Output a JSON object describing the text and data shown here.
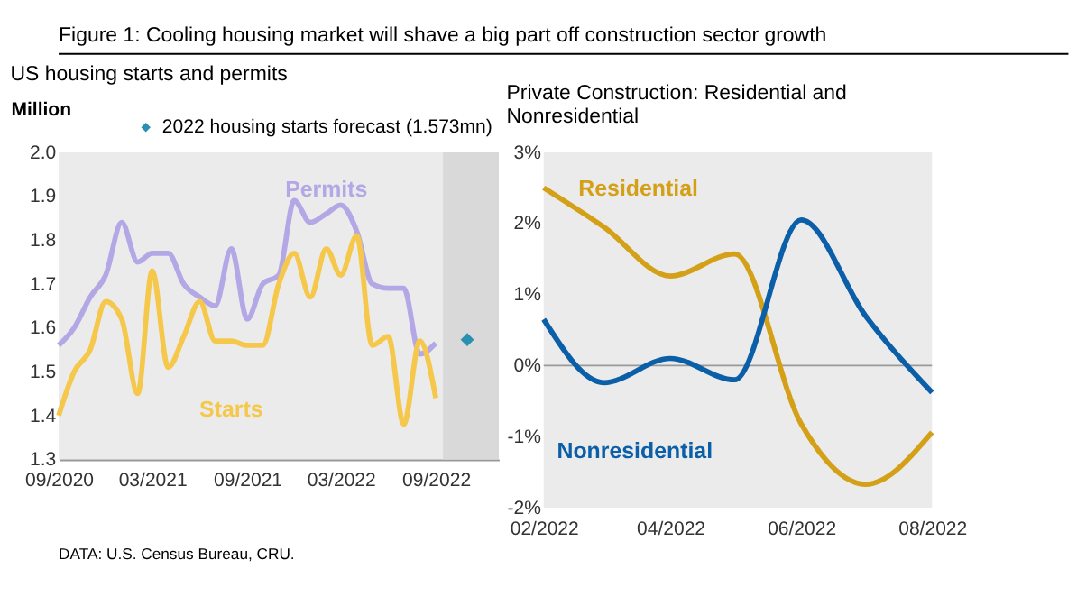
{
  "chart_data": [
    {
      "type": "other",
      "title": "Figure 1:  Cooling housing market will shave a big part off construction sector growth",
      "annotations": [
        "DATA: U.S. Census Bureau, CRU."
      ]
    },
    {
      "type": "line",
      "title": "US housing starts and permits",
      "ylabel": "Million",
      "x": [
        "2020-09",
        "2020-10",
        "2020-11",
        "2020-12",
        "2021-01",
        "2021-02",
        "2021-03",
        "2021-04",
        "2021-05",
        "2021-06",
        "2021-07",
        "2021-08",
        "2021-09",
        "2021-10",
        "2021-11",
        "2021-12",
        "2022-01",
        "2022-02",
        "2022-03",
        "2022-04",
        "2022-05",
        "2022-06",
        "2022-07",
        "2022-08",
        "2022-09"
      ],
      "series": [
        {
          "name": "Permits",
          "color": "#b4a7e5",
          "values": [
            1.56,
            1.6,
            1.67,
            1.72,
            1.84,
            1.75,
            1.77,
            1.77,
            1.7,
            1.67,
            1.65,
            1.78,
            1.62,
            1.7,
            1.72,
            1.89,
            1.84,
            1.86,
            1.88,
            1.82,
            1.7,
            1.69,
            1.69,
            1.54,
            1.565
          ]
        },
        {
          "name": "Starts",
          "color": "#f5c84c",
          "values": [
            1.4,
            1.5,
            1.55,
            1.66,
            1.62,
            1.45,
            1.73,
            1.51,
            1.58,
            1.66,
            1.57,
            1.57,
            1.56,
            1.56,
            1.7,
            1.77,
            1.67,
            1.78,
            1.72,
            1.81,
            1.56,
            1.58,
            1.38,
            1.57,
            1.44
          ]
        },
        {
          "name": "2022 housing starts forecast (1.573mn)",
          "type": "scatter",
          "marker": "diamond",
          "color": "#2b8fb0",
          "x": [
            "2022-11"
          ],
          "values": [
            1.573
          ]
        }
      ],
      "xlim": [
        "2020-09",
        "2023-01"
      ],
      "xticks": [
        {
          "value": "2020-09",
          "label": "09/2020"
        },
        {
          "value": "2021-03",
          "label": "03/2021"
        },
        {
          "value": "2021-09",
          "label": "09/2021"
        },
        {
          "value": "2022-03",
          "label": "03/2022"
        },
        {
          "value": "2022-09",
          "label": "09/2022"
        }
      ],
      "ylim": [
        1.3,
        2.0
      ],
      "yticks": [
        1.3,
        1.4,
        1.5,
        1.6,
        1.7,
        1.8,
        1.9,
        {
          "value": 2.0,
          "label": "2.0"
        }
      ],
      "bands": [
        {
          "axis": "x",
          "from": "2022-09-15",
          "to": "2023-01",
          "color": "#d9d9d9"
        }
      ],
      "grid": false,
      "legend": "top right"
    },
    {
      "type": "line",
      "title": "Private Construction: Residential and Nonresidential",
      "x": [
        "2022-02",
        "2022-03",
        "2022-04",
        "2022-05",
        "2022-06",
        "2022-07",
        "2022-08"
      ],
      "series": [
        {
          "name": "Residential",
          "color": "#d4a017",
          "values": [
            2.5,
            1.95,
            1.26,
            1.57,
            -0.82,
            -1.67,
            -0.94
          ]
        },
        {
          "name": "Nonresidential",
          "color": "#0b5ea8",
          "values": [
            0.65,
            -0.24,
            0.1,
            -0.2,
            2.05,
            0.7,
            -0.38
          ]
        }
      ],
      "xlim": [
        "2022-02",
        "2022-08"
      ],
      "xticks": [
        {
          "value": "2022-02",
          "label": "02/2022"
        },
        {
          "value": "2022-04",
          "label": "04/2022"
        },
        {
          "value": "2022-06",
          "label": "06/2022"
        },
        {
          "value": "2022-08",
          "label": "08/2022"
        }
      ],
      "ylim": [
        -2,
        3
      ],
      "yticks": [
        {
          "value": -2,
          "label": "-2%"
        },
        {
          "value": -1,
          "label": "-1%"
        },
        {
          "value": 0,
          "label": "0%"
        },
        {
          "value": 1,
          "label": "1%"
        },
        {
          "value": 2,
          "label": "2%"
        },
        {
          "value": 3,
          "label": "3%"
        }
      ],
      "ref_lines": [
        {
          "axis": "y",
          "value": 0,
          "color": "#999999"
        }
      ],
      "grid": false
    }
  ]
}
